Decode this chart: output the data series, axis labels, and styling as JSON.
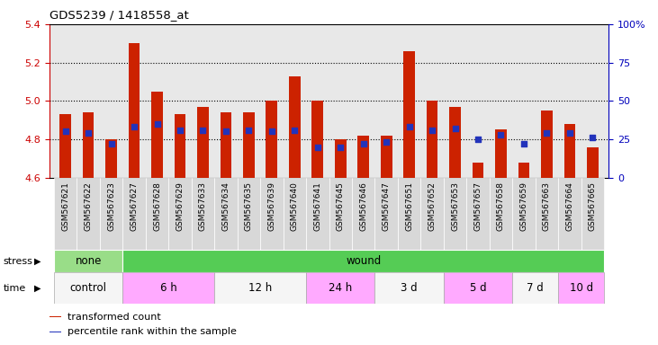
{
  "title": "GDS5239 / 1418558_at",
  "samples": [
    "GSM567621",
    "GSM567622",
    "GSM567623",
    "GSM567627",
    "GSM567628",
    "GSM567629",
    "GSM567633",
    "GSM567634",
    "GSM567635",
    "GSM567639",
    "GSM567640",
    "GSM567641",
    "GSM567645",
    "GSM567646",
    "GSM567647",
    "GSM567651",
    "GSM567652",
    "GSM567653",
    "GSM567657",
    "GSM567658",
    "GSM567659",
    "GSM567663",
    "GSM567664",
    "GSM567665"
  ],
  "red_values": [
    4.93,
    4.94,
    4.8,
    5.3,
    5.05,
    4.93,
    4.97,
    4.94,
    4.94,
    5.0,
    5.13,
    5.0,
    4.8,
    4.82,
    4.82,
    5.26,
    5.0,
    4.97,
    4.68,
    4.85,
    4.68,
    4.95,
    4.88,
    4.76
  ],
  "blue_values": [
    30,
    29,
    22,
    33,
    35,
    31,
    31,
    30,
    31,
    30,
    31,
    20,
    20,
    22,
    23,
    33,
    31,
    32,
    25,
    28,
    22,
    29,
    29,
    26
  ],
  "ylim_left": [
    4.6,
    5.4
  ],
  "ylim_right": [
    0,
    100
  ],
  "yticks_left": [
    4.6,
    4.8,
    5.0,
    5.2,
    5.4
  ],
  "yticks_right": [
    0,
    25,
    50,
    75,
    100
  ],
  "ytick_labels_right": [
    "0",
    "25",
    "50",
    "75",
    "100%"
  ],
  "grid_values": [
    4.8,
    5.0,
    5.2
  ],
  "bar_color": "#CC2200",
  "blue_color": "#2233BB",
  "plot_bg_color": "#E8E8E8",
  "xticklabel_bg_color": "#D8D8D8",
  "stress_none_color": "#99DD88",
  "stress_wound_color": "#55CC55",
  "time_white_color": "#F5F5F5",
  "time_pink_color": "#FFAAFF",
  "stress_groups": [
    {
      "label": "none",
      "start": 0,
      "end": 3
    },
    {
      "label": "wound",
      "start": 3,
      "end": 24
    }
  ],
  "time_groups": [
    {
      "label": "control",
      "start": 0,
      "end": 3
    },
    {
      "label": "6 h",
      "start": 3,
      "end": 7
    },
    {
      "label": "12 h",
      "start": 7,
      "end": 11
    },
    {
      "label": "24 h",
      "start": 11,
      "end": 14
    },
    {
      "label": "3 d",
      "start": 14,
      "end": 17
    },
    {
      "label": "5 d",
      "start": 17,
      "end": 20
    },
    {
      "label": "7 d",
      "start": 20,
      "end": 22
    },
    {
      "label": "10 d",
      "start": 22,
      "end": 24
    }
  ],
  "time_group_colors": [
    "white",
    "pink",
    "white",
    "pink",
    "white",
    "pink",
    "white",
    "pink"
  ],
  "legend_items": [
    {
      "label": "transformed count",
      "color": "#CC2200"
    },
    {
      "label": "percentile rank within the sample",
      "color": "#2233BB"
    }
  ],
  "left_axis_color": "#CC0000",
  "right_axis_color": "#0000BB",
  "bar_width": 0.5,
  "base_value": 4.6,
  "n_samples": 24,
  "figwidth": 7.31,
  "figheight": 3.84,
  "dpi": 100
}
